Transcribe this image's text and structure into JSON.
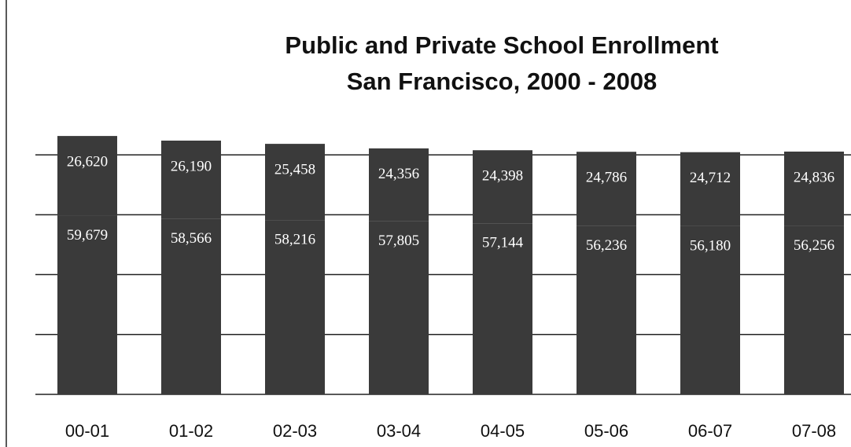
{
  "chart_data": {
    "type": "stacked_bar",
    "title": "Public and Private School Enrollment",
    "subtitle": "San Francisco, 2000 - 2008",
    "categories": [
      "00-01",
      "01-02",
      "02-03",
      "03-04",
      "04-05",
      "05-06",
      "06-07",
      "07-08"
    ],
    "series": [
      {
        "color": "#3a3a3a",
        "values": [
          59679,
          58566,
          58216,
          57805,
          57144,
          56236,
          56180,
          56256
        ],
        "value_labels": [
          "59,679",
          "58,566",
          "58,216",
          "57,805",
          "57,144",
          "56,236",
          "56,180",
          "56,256"
        ]
      },
      {
        "color": "#3a3a3a",
        "values": [
          26620,
          26190,
          25458,
          24356,
          24398,
          24786,
          24712,
          24836
        ],
        "value_labels": [
          "26,620",
          "26,190",
          "25,458",
          "24,356",
          "24,398",
          "24,786",
          "24,712",
          "24,836"
        ]
      }
    ],
    "ylim": [
      0,
      90000
    ],
    "yticks": [
      0,
      20000,
      40000,
      60000,
      80000
    ],
    "grid": true
  }
}
